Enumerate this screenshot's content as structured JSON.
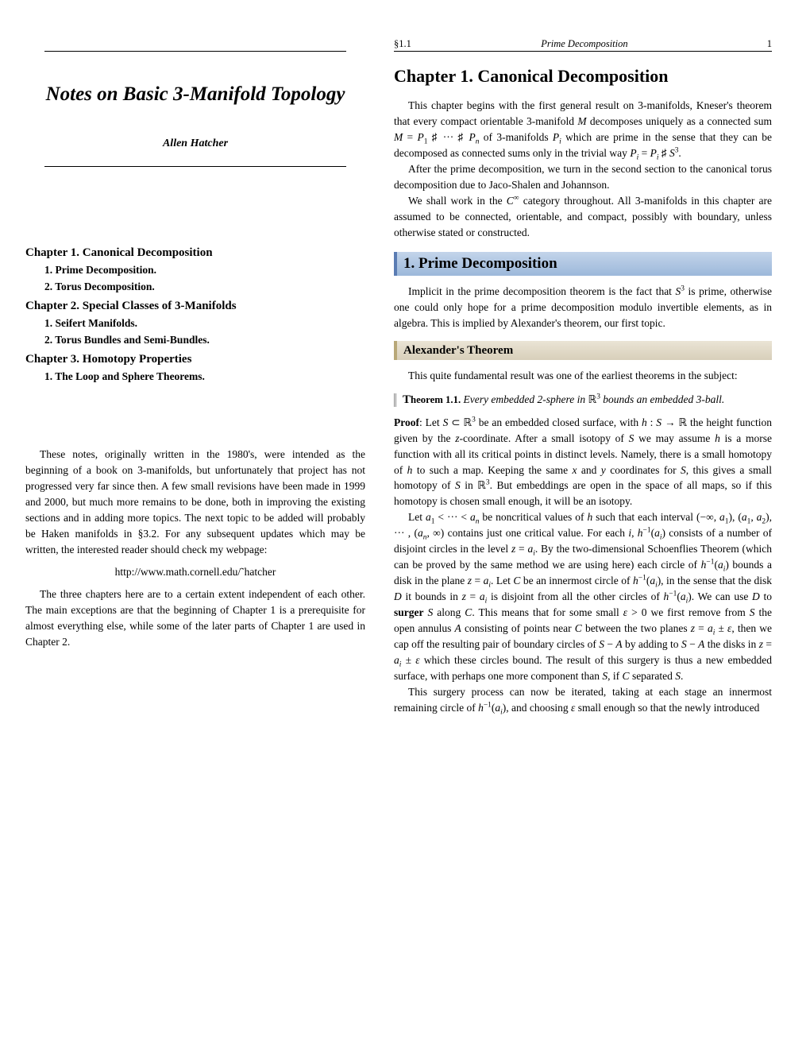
{
  "left": {
    "title": "Notes on Basic 3-Manifold Topology",
    "author": "Allen Hatcher",
    "toc": {
      "chapters": [
        {
          "title": "Chapter 1. Canonical Decomposition",
          "sections": [
            "1. Prime Decomposition.",
            "2. Torus Decomposition."
          ]
        },
        {
          "title": "Chapter 2. Special Classes of 3-Manifolds",
          "sections": [
            "1. Seifert Manifolds.",
            "2. Torus Bundles and Semi-Bundles."
          ]
        },
        {
          "title": "Chapter 3. Homotopy Properties",
          "sections": [
            "1. The Loop and Sphere Theorems."
          ]
        }
      ]
    },
    "intro1": "These notes, originally written in the 1980's, were intended as the beginning of a book on 3-manifolds, but unfortunately that project has not progressed very far since then. A few small revisions have been made in 1999 and 2000, but much more remains to be done, both in improving the existing sections and in adding more topics. The next topic to be added will probably be Haken manifolds in §3.2. For any subsequent updates which may be written, the interested reader should check my webpage:",
    "url": "http://www.math.cornell.edu/˜hatcher",
    "intro2": "The three chapters here are to a certain extent independent of each other. The main exceptions are that the beginning of Chapter 1 is a prerequisite for almost everything else, while some of the later parts of Chapter 1 are used in Chapter 2."
  },
  "right": {
    "header_section": "§1.1",
    "header_title": "Prime Decomposition",
    "header_page": "1",
    "chapter_title": "Chapter 1. Canonical Decomposition",
    "section_title": "1. Prime Decomposition",
    "subsection_title": "Alexander's Theorem",
    "theorem_label": "Theorem 1.1.",
    "proof_label": "Proof"
  },
  "colors": {
    "section_bg_top": "#c3d4ea",
    "section_bg_bottom": "#9cb8da",
    "section_border": "#5a7cb3",
    "subsection_bg_top": "#eae4d5",
    "subsection_bg_bottom": "#d8cfba",
    "subsection_border": "#b8a878",
    "text": "#000000",
    "background": "#ffffff"
  },
  "fonts": {
    "title_size": 25,
    "chapter_title_size": 22,
    "section_title_size": 19,
    "subsection_title_size": 15,
    "body_size": 13.5,
    "header_size": 12.5
  }
}
